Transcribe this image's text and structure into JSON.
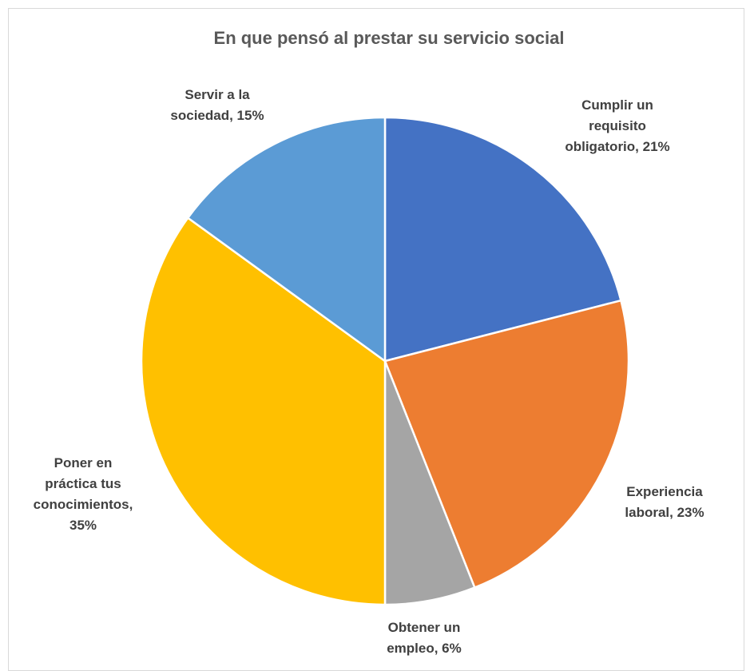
{
  "chart_data": {
    "type": "pie",
    "title": "En que pensó al prestar su servicio social",
    "categories": [
      "Cumplir un requisito obligatorio",
      "Experiencia laboral",
      "Obtener un empleo",
      "Poner en práctica tus conocimientos",
      "Servir a la sociedad"
    ],
    "values": [
      21,
      23,
      6,
      35,
      15
    ],
    "unit": "%",
    "colors": [
      "#4472C4",
      "#ED7D31",
      "#A5A5A5",
      "#FFC000",
      "#5B9BD5"
    ],
    "data_labels": [
      [
        "Cumplir un",
        "requisito",
        "obligatorio, 21%"
      ],
      [
        "Experiencia",
        "laboral, 23%"
      ],
      [
        "Obtener un",
        "empleo, 6%"
      ],
      [
        "Poner en",
        "práctica tus",
        "conocimientos,",
        "35%"
      ],
      [
        "Servir a la",
        "sociedad, 15%"
      ]
    ],
    "legend": "none",
    "start_angle": "12 o'clock, clockwise"
  }
}
